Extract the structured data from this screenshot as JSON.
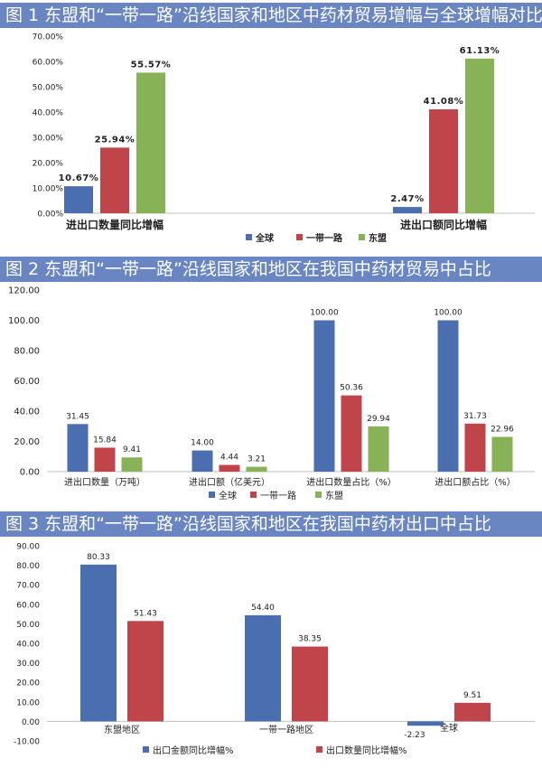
{
  "colors": {
    "global": "#4a6eb0",
    "belt_road": "#c0454a",
    "asean": "#87b256",
    "title_bg": "#6a86c2"
  },
  "chart_data": [
    {
      "type": "bar",
      "title": "图 1    东盟和“一带一路”沿线国家和地区中药材贸易增幅与全球增幅对比",
      "categories": [
        "进出口数量同比增幅",
        "进出口额同比增幅"
      ],
      "series": [
        {
          "name": "全球",
          "values": [
            10.67,
            2.47
          ],
          "labels": [
            "10.67%",
            "2.47%"
          ]
        },
        {
          "name": "一带一路",
          "values": [
            25.94,
            41.08
          ],
          "labels": [
            "25.94%",
            "41.08%"
          ]
        },
        {
          "name": "东盟",
          "values": [
            55.57,
            61.13
          ],
          "labels": [
            "55.57%",
            "61.13%"
          ]
        }
      ],
      "ylim": [
        0,
        70
      ],
      "yticks": [
        "0.00%",
        "10.00%",
        "20.00%",
        "30.00%",
        "40.00%",
        "50.00%",
        "60.00%",
        "70.00%"
      ],
      "legend": "bottom"
    },
    {
      "type": "bar",
      "title": "图 2    东盟和“一带一路”沿线国家和地区在我国中药材贸易中占比",
      "categories": [
        "进出口数量（万吨）",
        "进出口额（亿美元）",
        "进出口数量占比（%）",
        "进出口额占比（%）"
      ],
      "series": [
        {
          "name": "全球",
          "values": [
            31.45,
            14.0,
            100.0,
            100.0
          ],
          "labels": [
            "31.45",
            "14.00",
            "100.00",
            "100.00"
          ]
        },
        {
          "name": "一带一路",
          "values": [
            15.84,
            4.44,
            50.36,
            31.73
          ],
          "labels": [
            "15.84",
            "4.44",
            "50.36",
            "31.73"
          ]
        },
        {
          "name": "东盟",
          "values": [
            9.41,
            3.21,
            29.94,
            22.96
          ],
          "labels": [
            "9.41",
            "3.21",
            "29.94",
            "22.96"
          ]
        }
      ],
      "ylim": [
        0,
        120
      ],
      "yticks": [
        "0.00",
        "20.00",
        "40.00",
        "60.00",
        "80.00",
        "100.00",
        "120.00"
      ],
      "legend": "bottom"
    },
    {
      "type": "bar",
      "title": "图 3    东盟和“一带一路”沿线国家和地区在我国中药材出口中占比",
      "categories": [
        "东盟地区",
        "一带一路地区",
        "全球"
      ],
      "series": [
        {
          "name": "出口金额同比增幅%",
          "values": [
            80.33,
            54.4,
            -2.23
          ],
          "labels": [
            "80.33",
            "54.40",
            "-2.23"
          ]
        },
        {
          "name": "出口数量同比增幅%",
          "values": [
            51.43,
            38.35,
            9.51
          ],
          "labels": [
            "51.43",
            "38.35",
            "9.51"
          ]
        }
      ],
      "ylim": [
        -10,
        90
      ],
      "yticks": [
        "-10.00",
        "0.00",
        "10.00",
        "20.00",
        "30.00",
        "40.00",
        "50.00",
        "60.00",
        "70.00",
        "80.00",
        "90.00"
      ],
      "legend": "bottom"
    }
  ]
}
